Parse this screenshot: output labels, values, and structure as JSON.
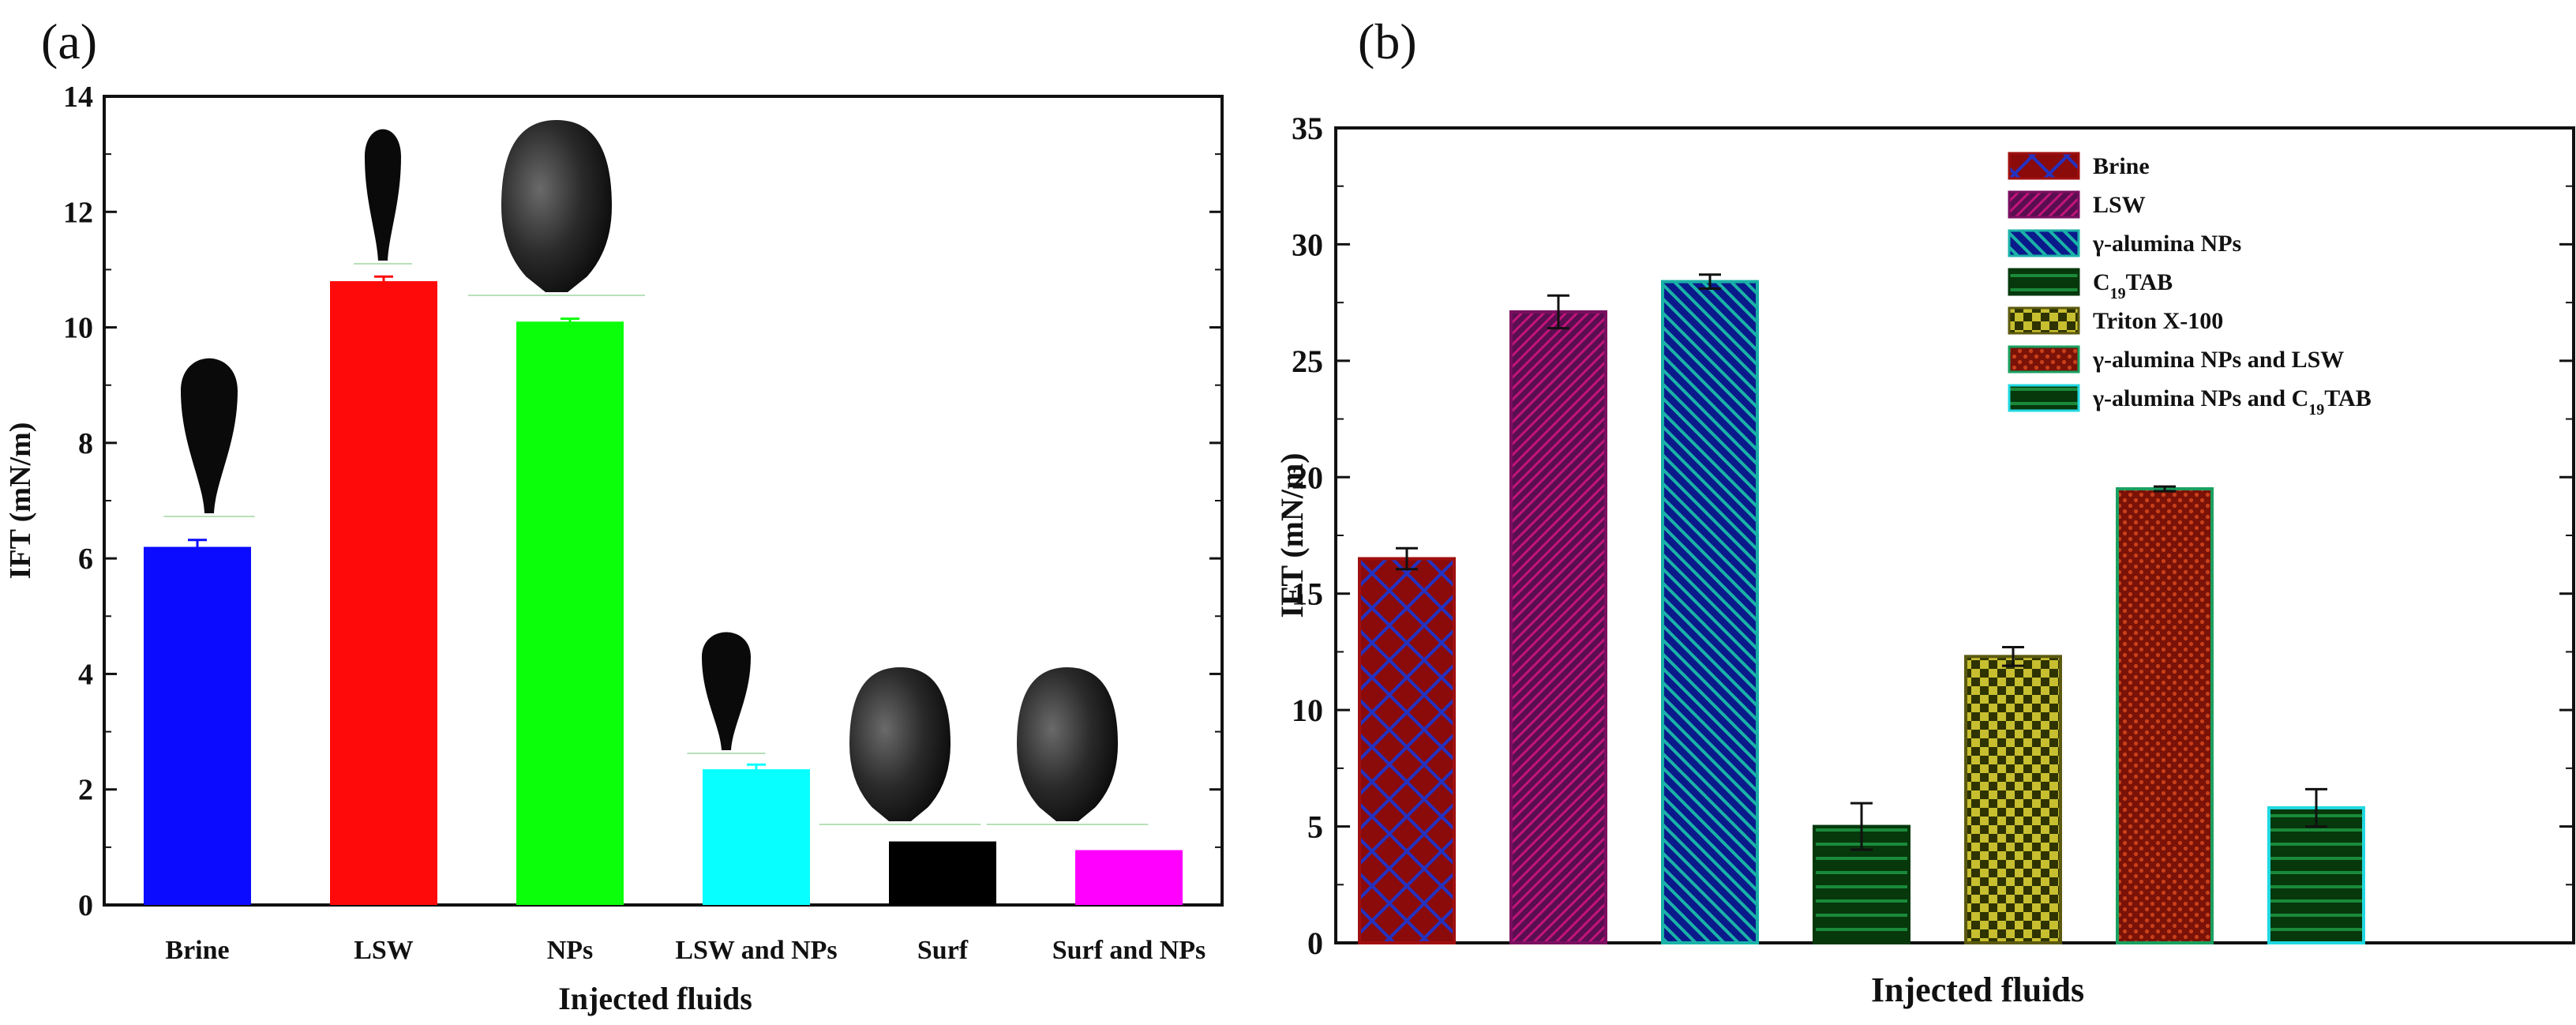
{
  "panels": {
    "a": {
      "label": "(a)"
    },
    "b": {
      "label": "(b)"
    }
  },
  "chart_data": [
    {
      "type": "bar",
      "panel": "(a)",
      "title": "",
      "xlabel": "Injected fluids",
      "ylabel": "IFT (mN/m)",
      "ylim": [
        0,
        14
      ],
      "yticks": [
        0,
        2,
        4,
        6,
        8,
        10,
        12,
        14
      ],
      "grid": false,
      "categories": [
        "Brine",
        "LSW",
        "NPs",
        "LSW and NPs",
        "Surf",
        "Surf and NPs"
      ],
      "values": [
        6.2,
        10.8,
        10.1,
        2.35,
        1.1,
        0.95
      ],
      "errors": [
        0.12,
        0.08,
        0.05,
        0.08,
        0.0,
        0.0
      ],
      "colors": [
        "#0b0bff",
        "#ff0a0a",
        "#0bff0b",
        "#08ffff",
        "#000000",
        "#ff00ff"
      ],
      "annotations": [
        "pendant-drop-image",
        "pendant-drop-image",
        "pendant-drop-image",
        "pendant-drop-image",
        "pendant-drop-image",
        "pendant-drop-image"
      ]
    },
    {
      "type": "bar",
      "panel": "(b)",
      "title": "",
      "xlabel": "Injected fluids",
      "ylabel": "IFT (mN/m)",
      "ylim": [
        0,
        35
      ],
      "yticks": [
        0,
        5,
        10,
        15,
        20,
        25,
        30,
        35
      ],
      "grid": false,
      "legend_position": "top-right",
      "categories": [
        "Brine",
        "LSW",
        "γ-alumina NPs",
        "C19TAB",
        "Triton X-100",
        "γ-alumina  NPs and LSW",
        "γ-alumina  NPs and C19TAB"
      ],
      "series": [
        {
          "name": "Brine",
          "legend_main": "Brine",
          "legend_sub": "",
          "legend_tail": "",
          "value": 16.5,
          "error": 0.45,
          "fill": "#8b0a0a",
          "hatch_color": "#2432c0",
          "pattern": "crosshatch",
          "edge": "#a01010"
        },
        {
          "name": "LSW",
          "legend_main": "LSW",
          "legend_sub": "",
          "legend_tail": "",
          "value": 27.1,
          "error": 0.7,
          "fill": "#5a0e52",
          "hatch_color": "#c21478",
          "pattern": "diagonal-right",
          "edge": "#7a0f60"
        },
        {
          "name": "γ-alumina NPs",
          "legend_main": "γ-alumina NPs",
          "legend_sub": "",
          "legend_tail": "",
          "value": 28.4,
          "error": 0.3,
          "fill": "#0a1a8a",
          "hatch_color": "#1ab2a8",
          "pattern": "diagonal-left",
          "edge": "#1ab2a8"
        },
        {
          "name": "C19TAB",
          "legend_main": "C",
          "legend_sub": "19",
          "legend_tail": "TAB",
          "value": 5.0,
          "error": 1.0,
          "fill": "#06380c",
          "hatch_color": "#1a8a3a",
          "pattern": "horizontal",
          "edge": "#06380c"
        },
        {
          "name": "Triton X-100",
          "legend_main": "Triton X-100",
          "legend_sub": "",
          "legend_tail": "",
          "value": 12.3,
          "error": 0.4,
          "fill": "#2e3300",
          "hatch_color": "#c8bf30",
          "pattern": "checker",
          "edge": "#5c5a10"
        },
        {
          "name": "γ-alumina  NPs and LSW",
          "legend_main": "γ-alumina  NPs and LSW",
          "legend_sub": "",
          "legend_tail": "",
          "value": 19.5,
          "error": 0.1,
          "fill": "#7a1208",
          "hatch_color": "#c8401a",
          "pattern": "dots",
          "edge": "#1aa060"
        },
        {
          "name": "γ-alumina  NPs and C19TAB",
          "legend_main": "γ-alumina  NPs and C",
          "legend_sub": "19",
          "legend_tail": "TAB",
          "value": 5.8,
          "error": 0.8,
          "fill": "#06380c",
          "hatch_color": "#1a8a3a",
          "pattern": "horizontal",
          "edge": "#20d8e0"
        }
      ]
    }
  ]
}
